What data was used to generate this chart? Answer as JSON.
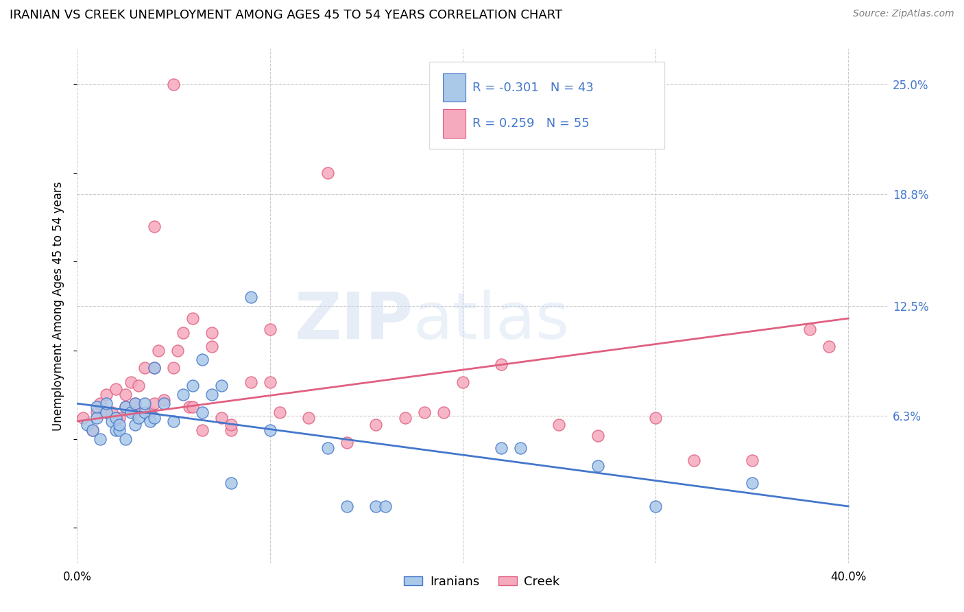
{
  "title": "IRANIAN VS CREEK UNEMPLOYMENT AMONG AGES 45 TO 54 YEARS CORRELATION CHART",
  "source": "Source: ZipAtlas.com",
  "ylabel": "Unemployment Among Ages 45 to 54 years",
  "xlim": [
    0.0,
    0.42
  ],
  "ylim": [
    -0.02,
    0.27
  ],
  "xticks": [
    0.0,
    0.1,
    0.2,
    0.3,
    0.4
  ],
  "xticklabels": [
    "0.0%",
    "",
    "",
    "",
    "40.0%"
  ],
  "ytick_labels_right": [
    "25.0%",
    "18.8%",
    "12.5%",
    "6.3%"
  ],
  "ytick_vals_right": [
    0.25,
    0.188,
    0.125,
    0.063
  ],
  "background_color": "#ffffff",
  "grid_color": "#cccccc",
  "legend_r_iranian": "-0.301",
  "legend_n_iranian": "43",
  "legend_r_creek": "0.259",
  "legend_n_creek": "55",
  "iranian_color": "#aac8e8",
  "creek_color": "#f5aabe",
  "iranian_line_color": "#4477cc",
  "creek_line_color": "#e06080",
  "iranian_scatter_x": [
    0.005,
    0.008,
    0.01,
    0.01,
    0.012,
    0.015,
    0.015,
    0.018,
    0.02,
    0.02,
    0.022,
    0.022,
    0.025,
    0.025,
    0.028,
    0.03,
    0.03,
    0.032,
    0.035,
    0.035,
    0.038,
    0.04,
    0.04,
    0.045,
    0.05,
    0.055,
    0.06,
    0.065,
    0.065,
    0.07,
    0.075,
    0.08,
    0.09,
    0.1,
    0.13,
    0.14,
    0.155,
    0.16,
    0.22,
    0.23,
    0.27,
    0.3,
    0.35
  ],
  "iranian_scatter_y": [
    0.058,
    0.055,
    0.062,
    0.068,
    0.05,
    0.065,
    0.07,
    0.06,
    0.055,
    0.062,
    0.055,
    0.058,
    0.05,
    0.068,
    0.065,
    0.058,
    0.07,
    0.062,
    0.065,
    0.07,
    0.06,
    0.062,
    0.09,
    0.07,
    0.06,
    0.075,
    0.08,
    0.065,
    0.095,
    0.075,
    0.08,
    0.025,
    0.13,
    0.055,
    0.045,
    0.012,
    0.012,
    0.012,
    0.045,
    0.045,
    0.035,
    0.012,
    0.025
  ],
  "creek_scatter_x": [
    0.003,
    0.008,
    0.01,
    0.012,
    0.015,
    0.015,
    0.018,
    0.02,
    0.022,
    0.025,
    0.025,
    0.028,
    0.03,
    0.03,
    0.032,
    0.035,
    0.038,
    0.04,
    0.04,
    0.042,
    0.045,
    0.05,
    0.052,
    0.055,
    0.058,
    0.06,
    0.065,
    0.07,
    0.075,
    0.08,
    0.09,
    0.1,
    0.12,
    0.13,
    0.14,
    0.155,
    0.17,
    0.18,
    0.22,
    0.25,
    0.27,
    0.3,
    0.32,
    0.35,
    0.38,
    0.39,
    0.04,
    0.05,
    0.06,
    0.07,
    0.08,
    0.1,
    0.105,
    0.19,
    0.2
  ],
  "creek_scatter_y": [
    0.062,
    0.055,
    0.065,
    0.07,
    0.065,
    0.075,
    0.065,
    0.078,
    0.062,
    0.068,
    0.075,
    0.082,
    0.065,
    0.07,
    0.08,
    0.09,
    0.065,
    0.07,
    0.09,
    0.1,
    0.072,
    0.09,
    0.1,
    0.11,
    0.068,
    0.118,
    0.055,
    0.11,
    0.062,
    0.055,
    0.082,
    0.112,
    0.062,
    0.2,
    0.048,
    0.058,
    0.062,
    0.065,
    0.092,
    0.058,
    0.052,
    0.062,
    0.038,
    0.038,
    0.112,
    0.102,
    0.17,
    0.25,
    0.068,
    0.102,
    0.058,
    0.082,
    0.065,
    0.065,
    0.082
  ],
  "iranian_trend_y_start": 0.07,
  "iranian_trend_y_end": 0.012,
  "creek_trend_y_start": 0.06,
  "creek_trend_y_end": 0.118
}
